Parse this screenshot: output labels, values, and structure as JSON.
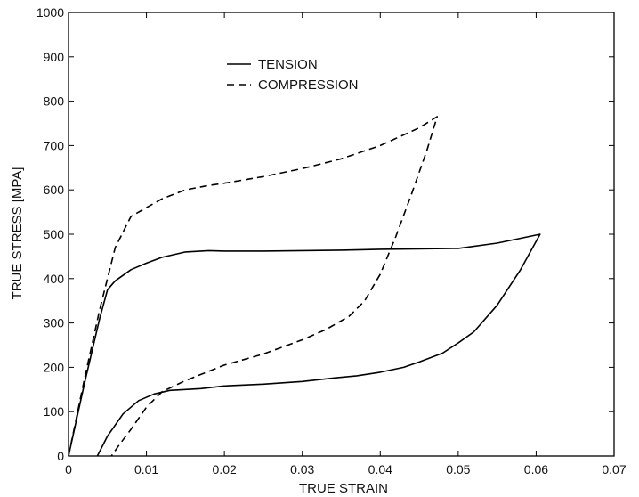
{
  "chart_data": {
    "type": "line",
    "xlabel": "TRUE STRAIN",
    "ylabel": "TRUE STRESS  [MPA]",
    "xlim": [
      0,
      0.07
    ],
    "ylim": [
      0,
      1000
    ],
    "x_ticks": [
      0,
      0.01,
      0.02,
      0.03,
      0.04,
      0.05,
      0.06,
      0.07
    ],
    "x_tick_labels": [
      "0",
      "0.01",
      "0.02",
      "0.03",
      "0.04",
      "0.05",
      "0.06",
      "0.07"
    ],
    "y_ticks": [
      0,
      100,
      200,
      300,
      400,
      500,
      600,
      700,
      800,
      900,
      1000
    ],
    "y_tick_labels": [
      "0",
      "100",
      "200",
      "300",
      "400",
      "500",
      "600",
      "700",
      "800",
      "900",
      "1000"
    ],
    "grid": false,
    "legend_position": "top-center",
    "series": [
      {
        "name": "TENSION",
        "line_style": "solid",
        "color": "#000000",
        "points": [
          [
            0,
            0
          ],
          [
            0.002,
            160
          ],
          [
            0.004,
            310
          ],
          [
            0.005,
            375
          ],
          [
            0.006,
            395
          ],
          [
            0.008,
            420
          ],
          [
            0.01,
            435
          ],
          [
            0.012,
            448
          ],
          [
            0.015,
            460
          ],
          [
            0.018,
            463
          ],
          [
            0.02,
            462
          ],
          [
            0.025,
            462
          ],
          [
            0.03,
            463
          ],
          [
            0.035,
            464
          ],
          [
            0.04,
            466
          ],
          [
            0.045,
            467
          ],
          [
            0.05,
            468
          ],
          [
            0.055,
            480
          ],
          [
            0.0605,
            500
          ],
          [
            0.058,
            420
          ],
          [
            0.055,
            340
          ],
          [
            0.052,
            280
          ],
          [
            0.05,
            255
          ],
          [
            0.048,
            232
          ],
          [
            0.045,
            212
          ],
          [
            0.043,
            200
          ],
          [
            0.04,
            189
          ],
          [
            0.037,
            181
          ],
          [
            0.034,
            176
          ],
          [
            0.03,
            168
          ],
          [
            0.025,
            162
          ],
          [
            0.02,
            158
          ],
          [
            0.017,
            152
          ],
          [
            0.015,
            150
          ],
          [
            0.013,
            148
          ],
          [
            0.011,
            140
          ],
          [
            0.009,
            125
          ],
          [
            0.007,
            95
          ],
          [
            0.005,
            45
          ],
          [
            0.0037,
            0
          ]
        ]
      },
      {
        "name": "COMPRESSION",
        "line_style": "dashed",
        "color": "#000000",
        "points": [
          [
            0,
            0
          ],
          [
            0.002,
            170
          ],
          [
            0.004,
            330
          ],
          [
            0.006,
            470
          ],
          [
            0.008,
            540
          ],
          [
            0.01,
            560
          ],
          [
            0.012,
            580
          ],
          [
            0.015,
            600
          ],
          [
            0.018,
            610
          ],
          [
            0.02,
            615
          ],
          [
            0.025,
            630
          ],
          [
            0.03,
            648
          ],
          [
            0.035,
            670
          ],
          [
            0.04,
            700
          ],
          [
            0.045,
            740
          ],
          [
            0.0473,
            765
          ],
          [
            0.046,
            690
          ],
          [
            0.044,
            590
          ],
          [
            0.042,
            495
          ],
          [
            0.04,
            410
          ],
          [
            0.038,
            350
          ],
          [
            0.036,
            315
          ],
          [
            0.033,
            285
          ],
          [
            0.03,
            262
          ],
          [
            0.025,
            230
          ],
          [
            0.02,
            205
          ],
          [
            0.015,
            170
          ],
          [
            0.012,
            145
          ],
          [
            0.01,
            110
          ],
          [
            0.008,
            60
          ],
          [
            0.0065,
            25
          ],
          [
            0.0055,
            0
          ]
        ]
      }
    ]
  }
}
